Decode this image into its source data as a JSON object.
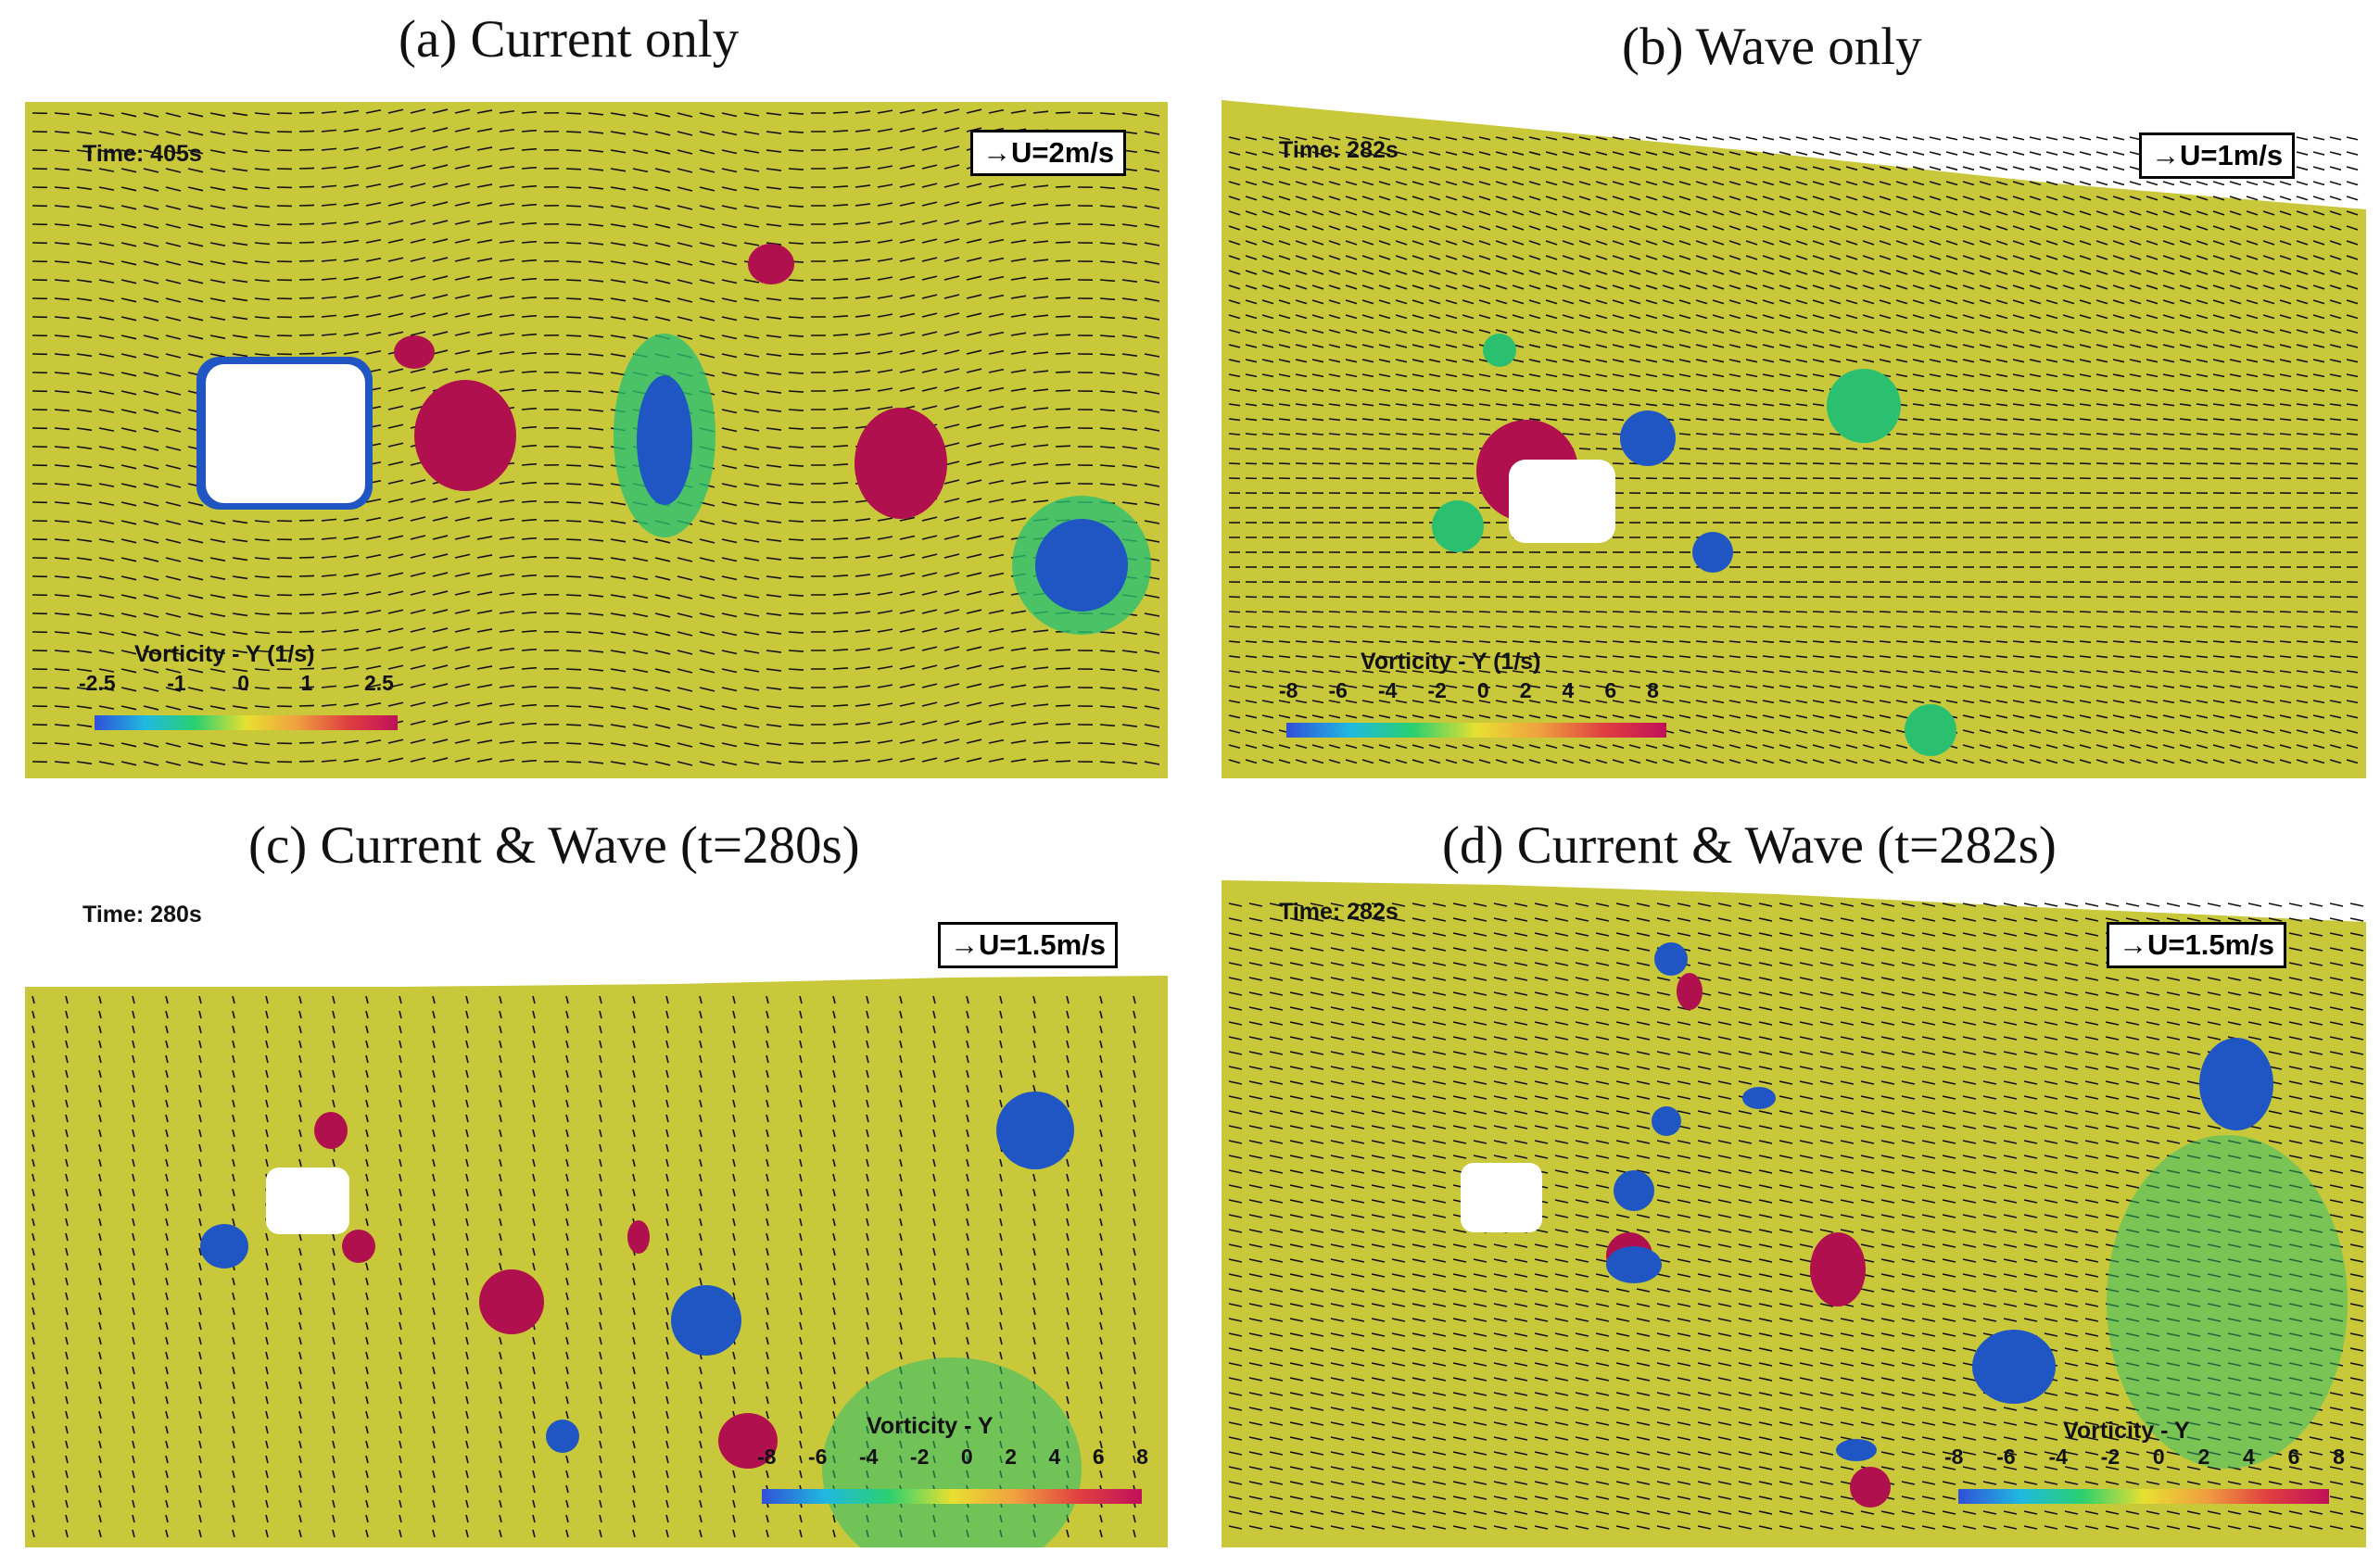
{
  "panels": [
    {
      "title": "(a) Current only",
      "time": "Time: 405s",
      "scale": "U=2m/s",
      "colorbar_title": "Vorticity - Y (1/s)",
      "ticks": [
        "-2.5",
        "-1",
        "0",
        "1",
        "2.5"
      ]
    },
    {
      "title": "(b) Wave only",
      "time": "Time: 282s",
      "scale": "U=1m/s",
      "colorbar_title": "Vorticity - Y (1/s)",
      "ticks": [
        "-8",
        "-6",
        "-4",
        "-2",
        "0",
        "2",
        "4",
        "6",
        "8"
      ]
    },
    {
      "title": "(c) Current & Wave (t=280s)",
      "time": "Time: 280s",
      "scale": "U=1.5m/s",
      "colorbar_title": "Vorticity - Y",
      "ticks": [
        "-8",
        "-6",
        "-4",
        "-2",
        "0",
        "2",
        "4",
        "6",
        "8"
      ]
    },
    {
      "title": "(d) Current & Wave (t=282s)",
      "time": "Time: 282s",
      "scale": "U=1.5m/s",
      "colorbar_title": "Vorticity - Y",
      "ticks": [
        "-8",
        "-6",
        "-4",
        "-2",
        "0",
        "2",
        "4",
        "6",
        "8"
      ]
    }
  ],
  "colors": {
    "background_field": "#c9c83a",
    "positive_vortex": "#b0104e",
    "negative_vortex": "#1f56c4",
    "shear": "#3cc070"
  }
}
